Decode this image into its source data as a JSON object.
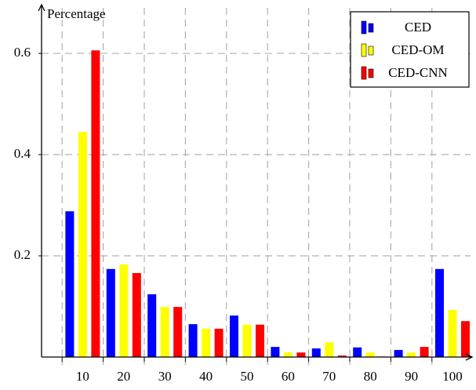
{
  "chart_data": {
    "type": "bar",
    "y_label": "Percentage",
    "categories": [
      "10",
      "20",
      "30",
      "40",
      "50",
      "60",
      "70",
      "80",
      "90",
      "100"
    ],
    "series": [
      {
        "name": "CED",
        "color": "#0000ff",
        "values": [
          0.288,
          0.174,
          0.124,
          0.065,
          0.082,
          0.02,
          0.017,
          0.019,
          0.014,
          0.174
        ]
      },
      {
        "name": "CED-OM",
        "color": "#ffff00",
        "values": [
          0.445,
          0.183,
          0.099,
          0.056,
          0.064,
          0.009,
          0.029,
          0.009,
          0.009,
          0.093
        ]
      },
      {
        "name": "CED-CNN",
        "color": "#ff0000",
        "values": [
          0.606,
          0.166,
          0.099,
          0.056,
          0.064,
          0.009,
          0.003,
          0.001,
          0.02,
          0.071
        ]
      }
    ],
    "ylim": [
      0,
      0.69
    ],
    "yticks": [
      0.2,
      0.4,
      0.6
    ],
    "grid": true,
    "legend": "top-right"
  }
}
